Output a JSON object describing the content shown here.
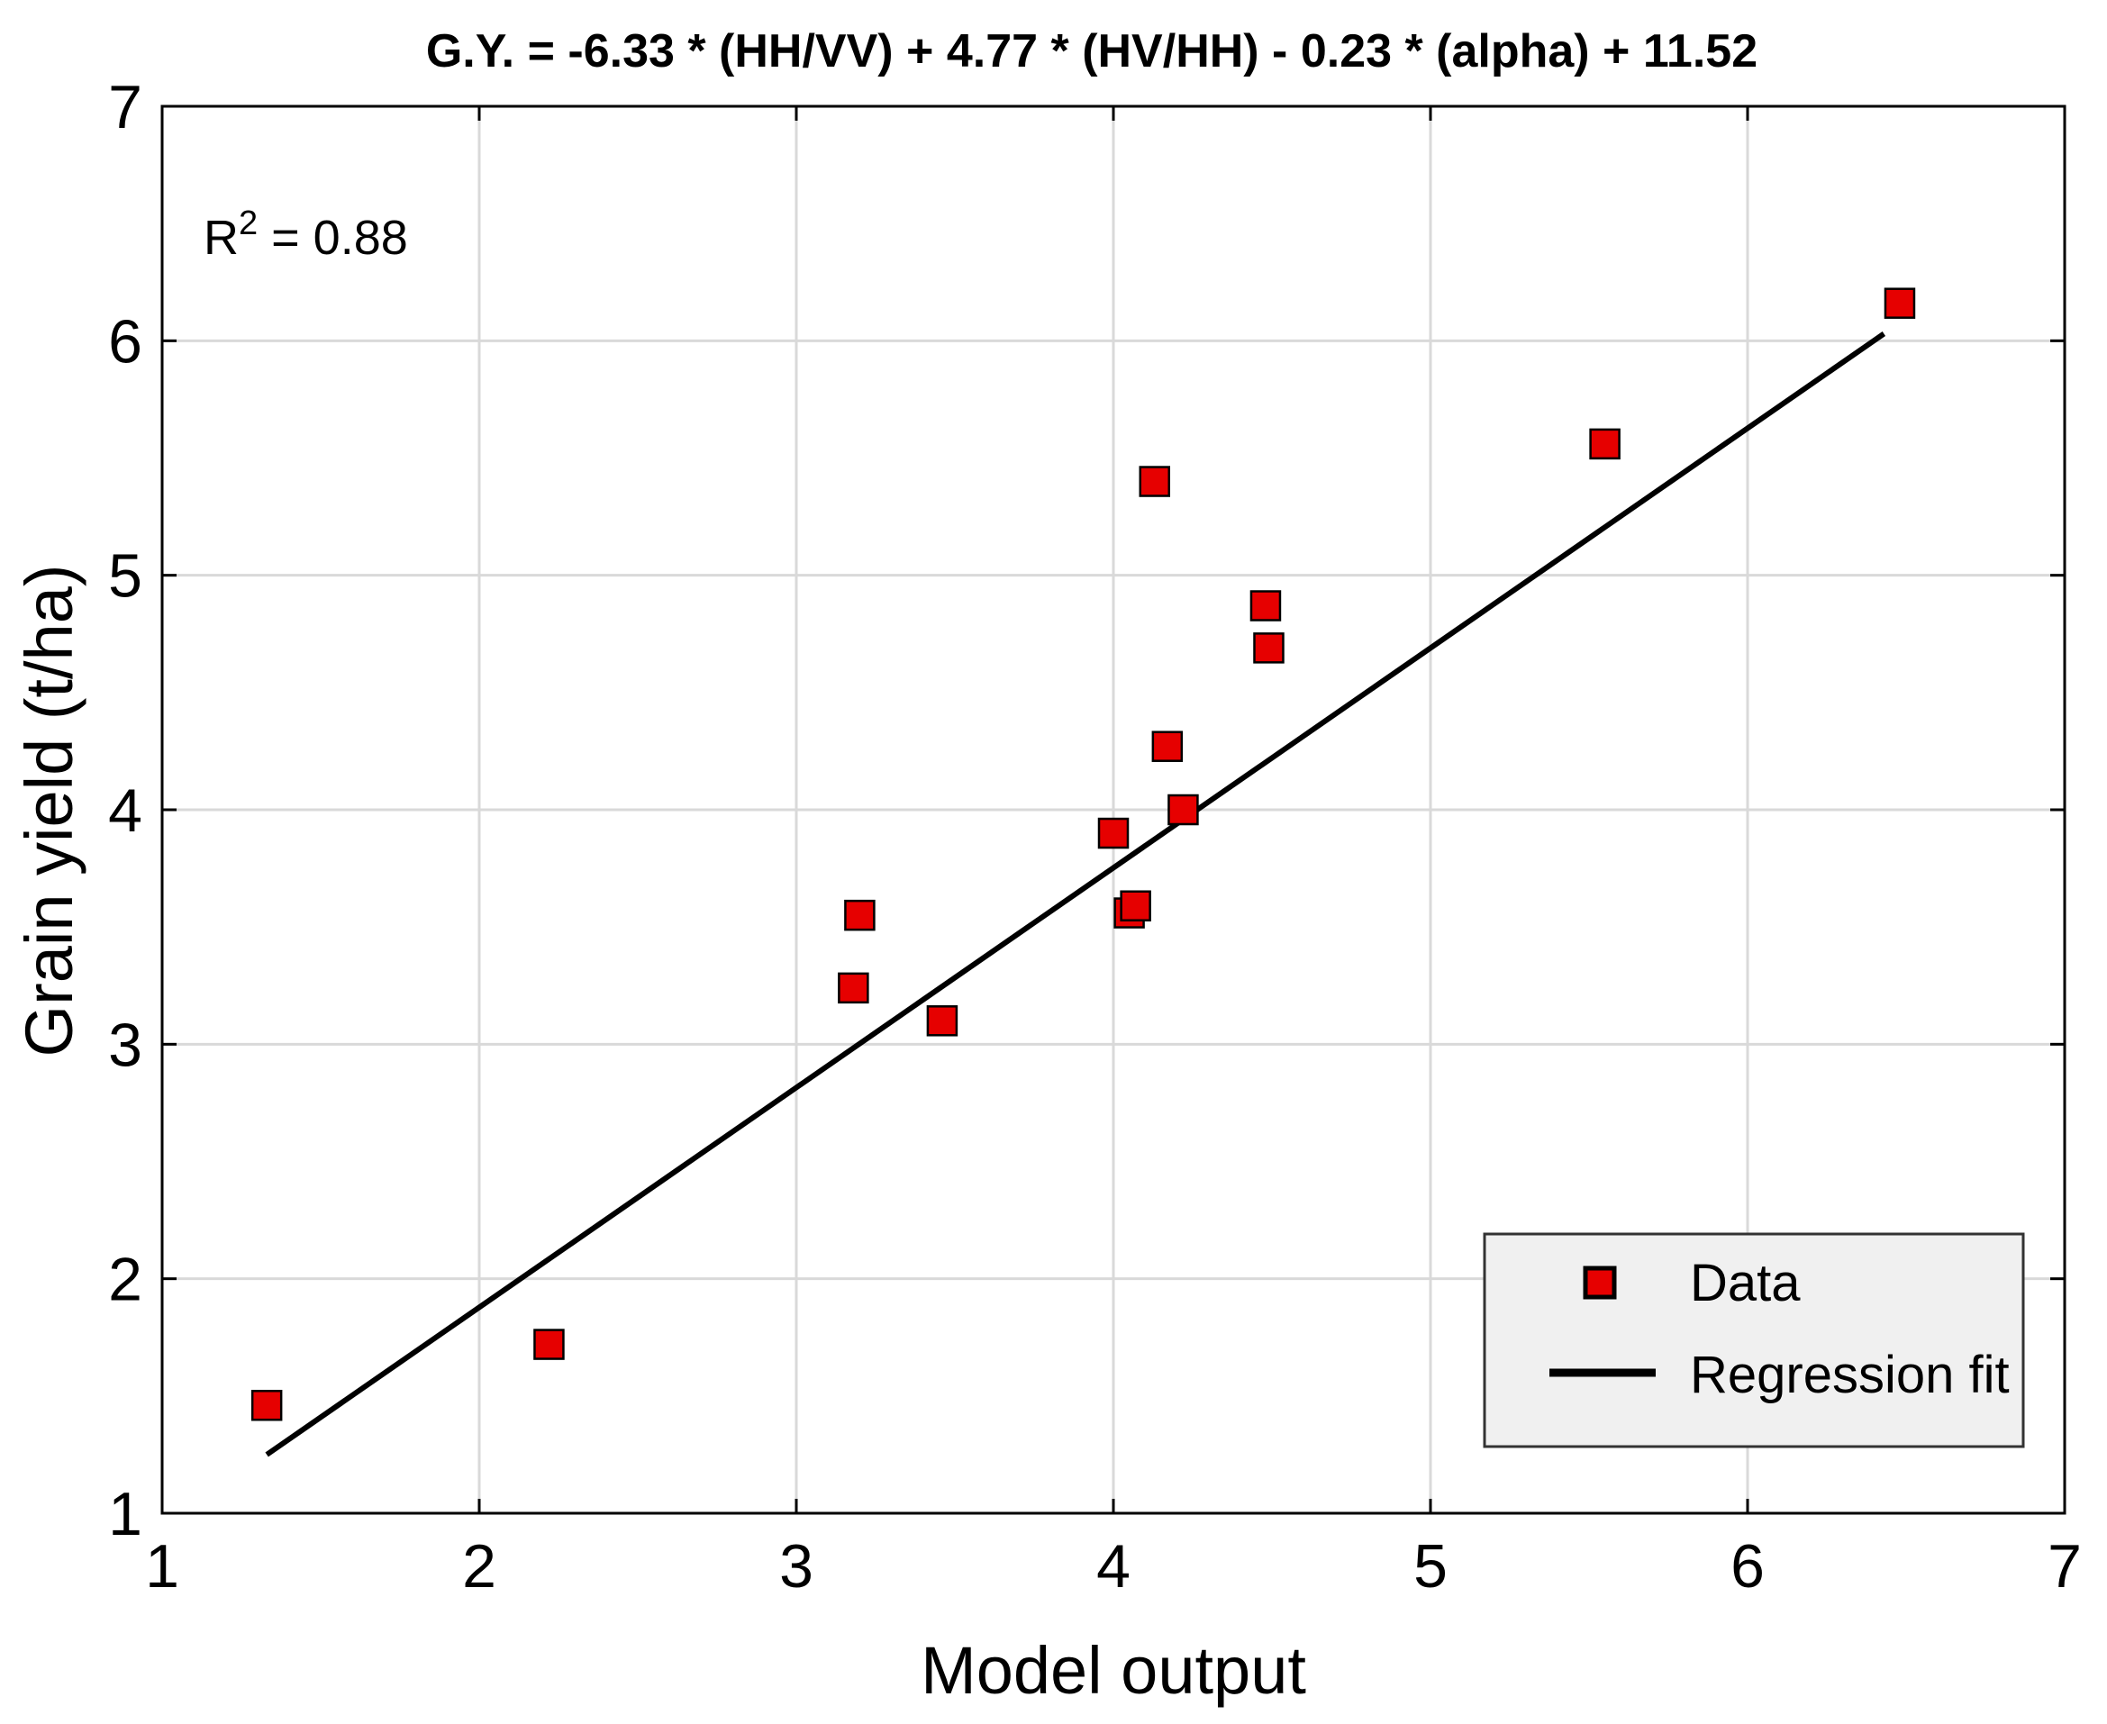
{
  "chart_data": {
    "type": "scatter",
    "title": "G.Y. = -6.33 * (HH/VV) + 4.77 * (HV/HH) - 0.23 * (alpha) + 11.52",
    "xlabel": "Model output",
    "ylabel": "Grain yield (t/ha)",
    "xlim": [
      1,
      7
    ],
    "ylim": [
      1,
      7
    ],
    "xticks": [
      "1",
      "2",
      "3",
      "4",
      "5",
      "6",
      "7"
    ],
    "yticks": [
      "1",
      "2",
      "3",
      "4",
      "5",
      "6",
      "7"
    ],
    "grid": true,
    "annotation": {
      "prefix": "R",
      "sup": "2",
      "suffix": " = 0.88"
    },
    "series": [
      {
        "name": "Data",
        "kind": "scatter",
        "marker": "square",
        "color": "#e60000",
        "x": [
          1.33,
          2.22,
          3.18,
          3.2,
          3.46,
          4.0,
          4.05,
          4.07,
          4.13,
          4.17,
          4.22,
          4.48,
          4.49,
          5.55,
          6.48
        ],
        "y": [
          1.46,
          1.72,
          3.24,
          3.55,
          3.1,
          3.9,
          3.56,
          3.59,
          5.4,
          4.27,
          4.0,
          4.87,
          4.69,
          5.56,
          6.16
        ]
      },
      {
        "name": "Regression fit",
        "kind": "line",
        "color": "#000000",
        "x": [
          1.33,
          6.43
        ],
        "y": [
          1.25,
          6.03
        ]
      }
    ],
    "legend": {
      "placement": "bottom-right",
      "entries": [
        "Data",
        "Regression fit"
      ]
    }
  }
}
